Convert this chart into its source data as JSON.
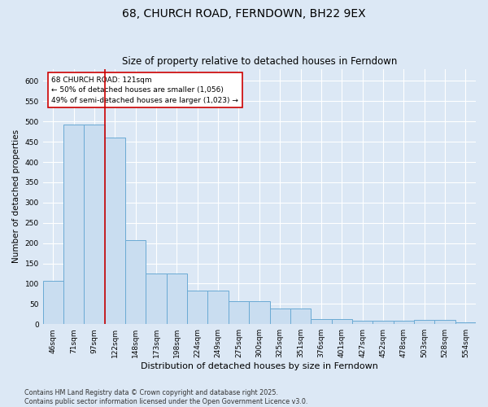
{
  "title": "68, CHURCH ROAD, FERNDOWN, BH22 9EX",
  "subtitle": "Size of property relative to detached houses in Ferndown",
  "xlabel": "Distribution of detached houses by size in Ferndown",
  "ylabel": "Number of detached properties",
  "categories": [
    "46sqm",
    "71sqm",
    "97sqm",
    "122sqm",
    "148sqm",
    "173sqm",
    "198sqm",
    "224sqm",
    "249sqm",
    "275sqm",
    "300sqm",
    "325sqm",
    "351sqm",
    "376sqm",
    "401sqm",
    "427sqm",
    "452sqm",
    "478sqm",
    "503sqm",
    "528sqm",
    "554sqm"
  ],
  "values": [
    107,
    492,
    492,
    460,
    207,
    124,
    124,
    82,
    82,
    57,
    57,
    38,
    38,
    13,
    13,
    9,
    9,
    9,
    10,
    10,
    4
  ],
  "bar_color": "#c9ddf0",
  "bar_edge_color": "#6aaad4",
  "vline_x_index": 2,
  "vline_color": "#cc0000",
  "annotation_text": "68 CHURCH ROAD: 121sqm\n← 50% of detached houses are smaller (1,056)\n49% of semi-detached houses are larger (1,023) →",
  "annotation_box_facecolor": "#ffffff",
  "annotation_box_edgecolor": "#cc0000",
  "footer": "Contains HM Land Registry data © Crown copyright and database right 2025.\nContains public sector information licensed under the Open Government Licence v3.0.",
  "bg_color": "#dce8f5",
  "plot_bg_color": "#dce8f5",
  "ylim": [
    0,
    630
  ],
  "yticks": [
    0,
    50,
    100,
    150,
    200,
    250,
    300,
    350,
    400,
    450,
    500,
    550,
    600
  ],
  "title_fontsize": 10,
  "subtitle_fontsize": 8.5,
  "xlabel_fontsize": 8,
  "ylabel_fontsize": 7.5,
  "tick_fontsize": 6.5,
  "annotation_fontsize": 6.5,
  "footer_fontsize": 5.8
}
